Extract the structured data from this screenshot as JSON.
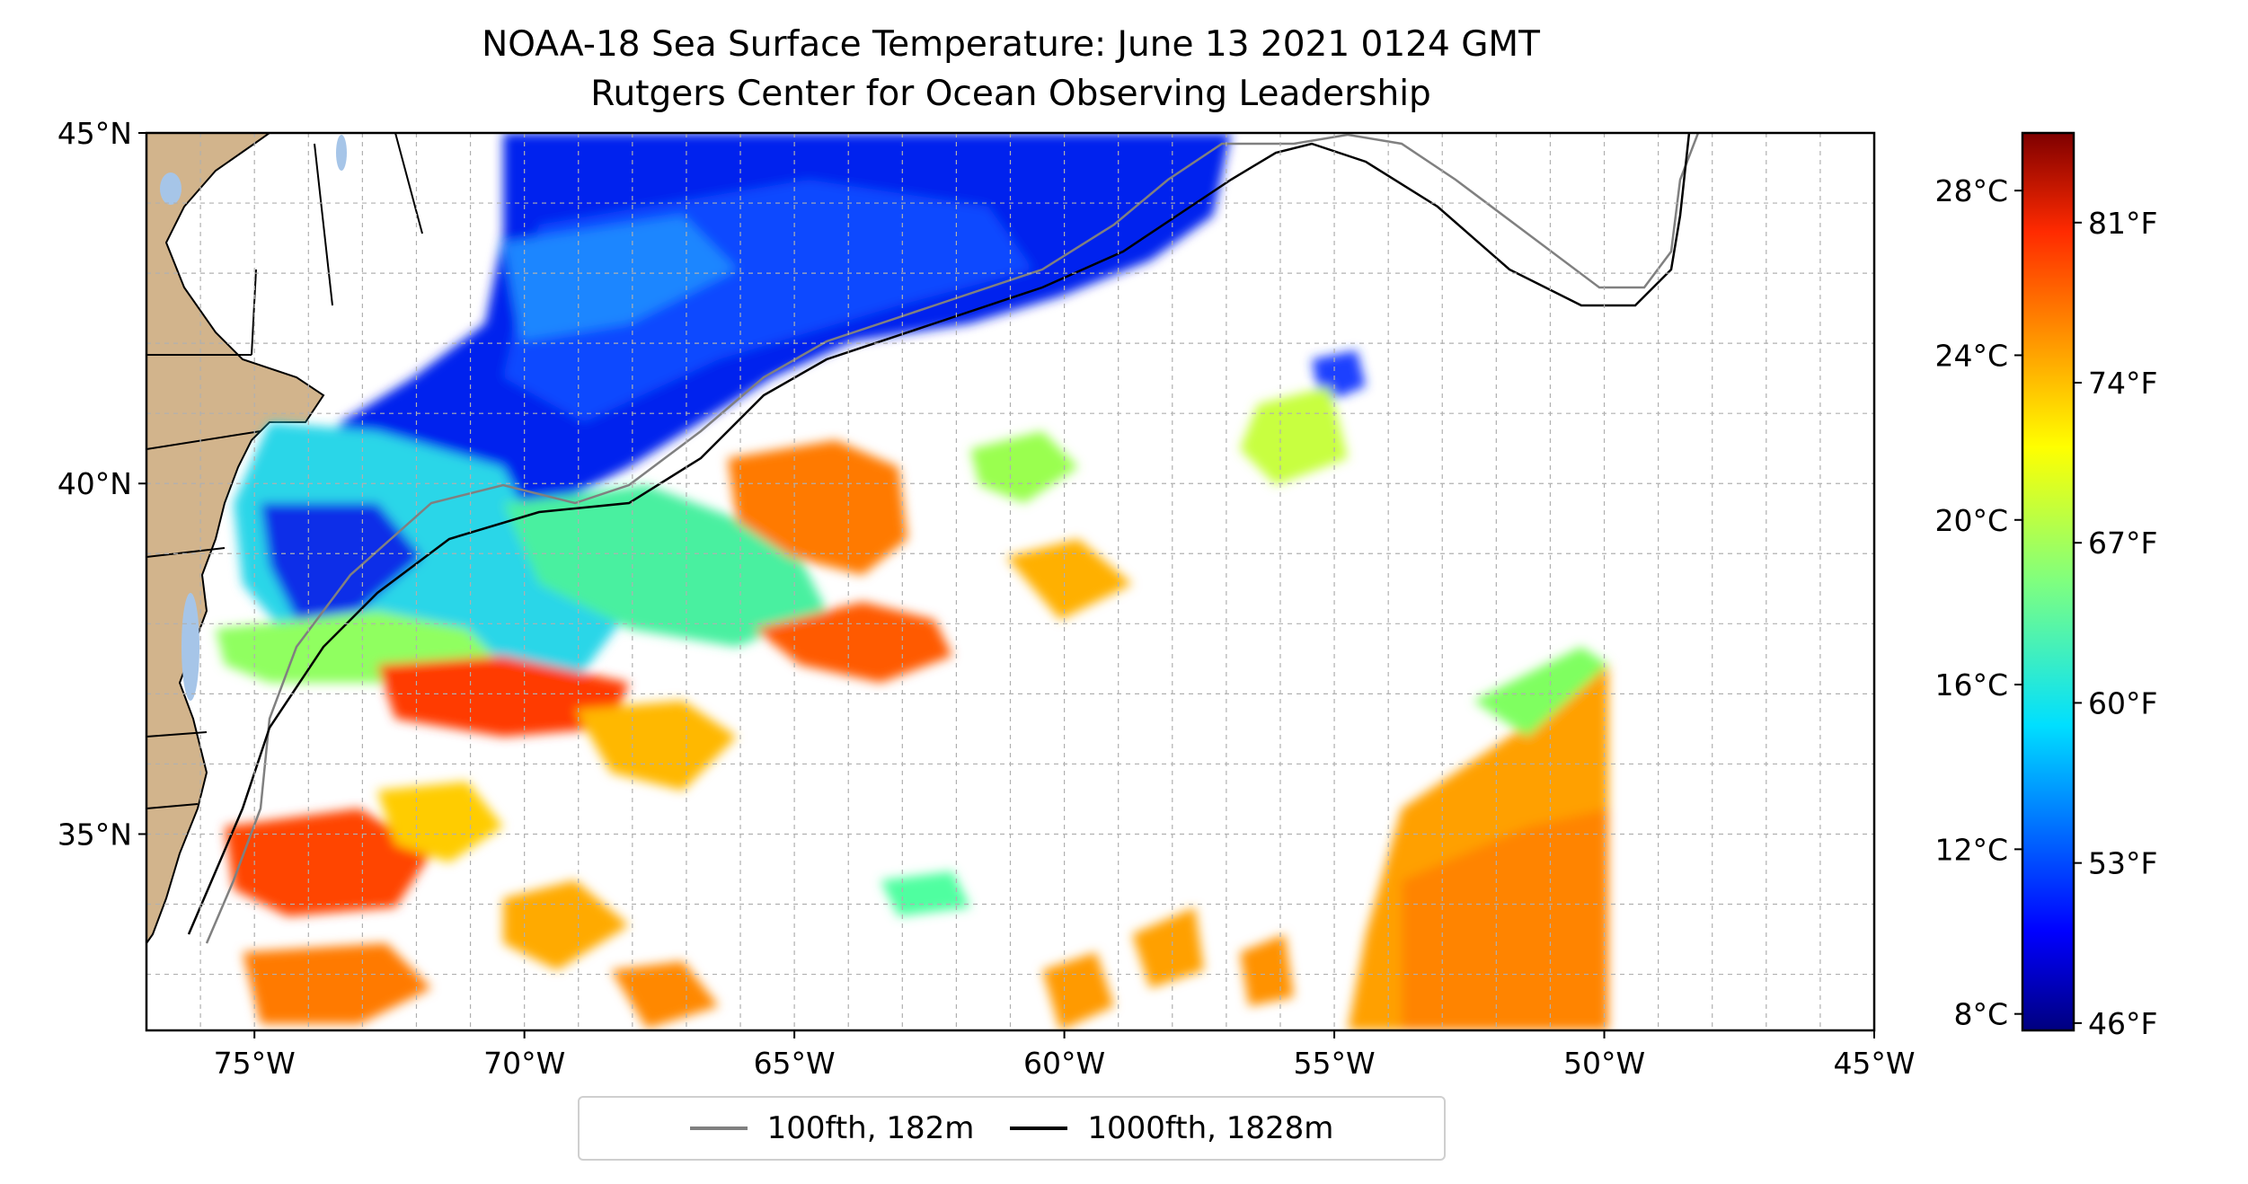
{
  "title": {
    "line1": "NOAA-18 Sea Surface Temperature: June 13 2021 0124 GMT",
    "line2": "Rutgers Center for Ocean Observing Leadership"
  },
  "map": {
    "lon_range": [
      -77,
      -45
    ],
    "lat_range": [
      32.2,
      45
    ],
    "lon_ticks": [
      {
        "value": -75,
        "label": "75°W"
      },
      {
        "value": -70,
        "label": "70°W"
      },
      {
        "value": -65,
        "label": "65°W"
      },
      {
        "value": -60,
        "label": "60°W"
      },
      {
        "value": -55,
        "label": "55°W"
      },
      {
        "value": -50,
        "label": "50°W"
      },
      {
        "value": -45,
        "label": "45°W"
      }
    ],
    "lat_ticks": [
      {
        "value": 45,
        "label": "45°N"
      },
      {
        "value": 40,
        "label": "40°N"
      },
      {
        "value": 35,
        "label": "35°N"
      }
    ],
    "grid": "dashed",
    "colors": {
      "land": "#d2b48c",
      "water_fill": "#ffffff",
      "isobath_100": "#808080",
      "isobath_1000": "#000000"
    }
  },
  "colorbar": {
    "colormap": "jet",
    "celsius_ticks": [
      {
        "value": 28,
        "label": "28°C"
      },
      {
        "value": 24,
        "label": "24°C"
      },
      {
        "value": 20,
        "label": "20°C"
      },
      {
        "value": 16,
        "label": "16°C"
      },
      {
        "value": 12,
        "label": "12°C"
      },
      {
        "value": 8,
        "label": "8°C"
      }
    ],
    "fahrenheit_ticks": [
      {
        "value": 81,
        "label": "81°F"
      },
      {
        "value": 74,
        "label": "74°F"
      },
      {
        "value": 67,
        "label": "67°F"
      },
      {
        "value": 60,
        "label": "60°F"
      },
      {
        "value": 53,
        "label": "53°F"
      },
      {
        "value": 46,
        "label": "46°F"
      }
    ]
  },
  "legend": {
    "items": [
      {
        "label": "100fth, 182m",
        "color": "#808080"
      },
      {
        "label": "1000fth, 1828m",
        "color": "#000000"
      }
    ]
  }
}
